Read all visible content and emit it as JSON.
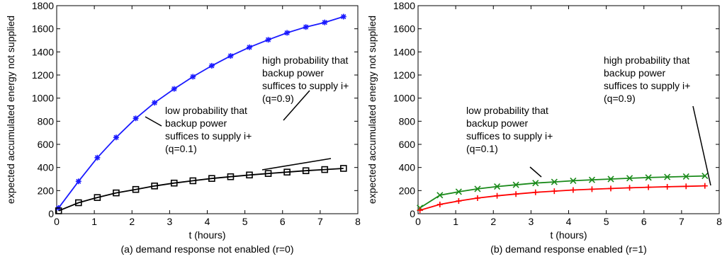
{
  "chart_data": [
    {
      "type": "line",
      "caption": "(a) demand response not enabled (r=0)",
      "xlabel": "t (hours)",
      "ylabel": "expected accumulated energy not supplied",
      "xlim": [
        0,
        8
      ],
      "ylim": [
        0,
        1800
      ],
      "xticks": [
        "0",
        "1",
        "2",
        "3",
        "4",
        "5",
        "6",
        "7",
        "8"
      ],
      "yticks": [
        "0",
        "200",
        "400",
        "600",
        "800",
        "1000",
        "1200",
        "1400",
        "1600",
        "1800"
      ],
      "grid": false,
      "series": [
        {
          "color": "#1a1aff",
          "marker": "asterisk",
          "x": [
            0.05,
            0.58,
            1.08,
            1.58,
            2.1,
            2.6,
            3.12,
            3.62,
            4.12,
            4.62,
            5.12,
            5.62,
            6.12,
            6.62,
            7.12,
            7.62
          ],
          "y": [
            50,
            280,
            485,
            660,
            825,
            960,
            1080,
            1185,
            1280,
            1365,
            1440,
            1505,
            1565,
            1615,
            1655,
            1705
          ]
        },
        {
          "color": "#000000",
          "marker": "square",
          "x": [
            0.05,
            0.58,
            1.08,
            1.58,
            2.1,
            2.6,
            3.12,
            3.62,
            4.12,
            4.62,
            5.12,
            5.62,
            6.12,
            6.62,
            7.12,
            7.62
          ],
          "y": [
            25,
            95,
            140,
            180,
            210,
            240,
            265,
            285,
            305,
            320,
            335,
            348,
            360,
            372,
            382,
            392
          ]
        }
      ],
      "annotations": [
        {
          "lines": [
            "high probability that",
            "backup power",
            "suffices to supply i+",
            "(q=0.9)"
          ]
        },
        {
          "lines": [
            "low probability that",
            "backup power",
            "suffices to supply i+",
            "(q=0.1)"
          ]
        }
      ]
    },
    {
      "type": "line",
      "caption": "(b) demand response enabled (r=1)",
      "xlabel": "t (hours)",
      "ylabel": "expected accumulated energy not supplied",
      "xlim": [
        0,
        8
      ],
      "ylim": [
        0,
        1800
      ],
      "xticks": [
        "0",
        "1",
        "2",
        "3",
        "4",
        "5",
        "6",
        "7",
        "8"
      ],
      "yticks": [
        "0",
        "200",
        "400",
        "600",
        "800",
        "1000",
        "1200",
        "1400",
        "1600",
        "1800"
      ],
      "grid": false,
      "series": [
        {
          "color": "#1a8a1a",
          "marker": "x",
          "x": [
            0.05,
            0.58,
            1.08,
            1.58,
            2.1,
            2.6,
            3.12,
            3.62,
            4.12,
            4.62,
            5.12,
            5.62,
            6.12,
            6.62,
            7.12,
            7.62
          ],
          "y": [
            50,
            160,
            190,
            215,
            235,
            250,
            265,
            275,
            285,
            293,
            300,
            307,
            313,
            318,
            322,
            327
          ]
        },
        {
          "color": "#ff0000",
          "marker": "plus",
          "x": [
            0.05,
            0.58,
            1.08,
            1.58,
            2.1,
            2.6,
            3.12,
            3.62,
            4.12,
            4.62,
            5.12,
            5.62,
            6.12,
            6.62,
            7.12,
            7.62
          ],
          "y": [
            30,
            80,
            110,
            135,
            155,
            170,
            185,
            195,
            205,
            212,
            218,
            224,
            229,
            233,
            237,
            241
          ]
        }
      ],
      "annotations": [
        {
          "lines": [
            "high probability that",
            "backup power",
            "suffices to supply i+",
            "(q=0.9)"
          ]
        },
        {
          "lines": [
            "low probability that",
            "backup power",
            "suffices to supply i+",
            "(q=0.1)"
          ]
        }
      ]
    }
  ]
}
